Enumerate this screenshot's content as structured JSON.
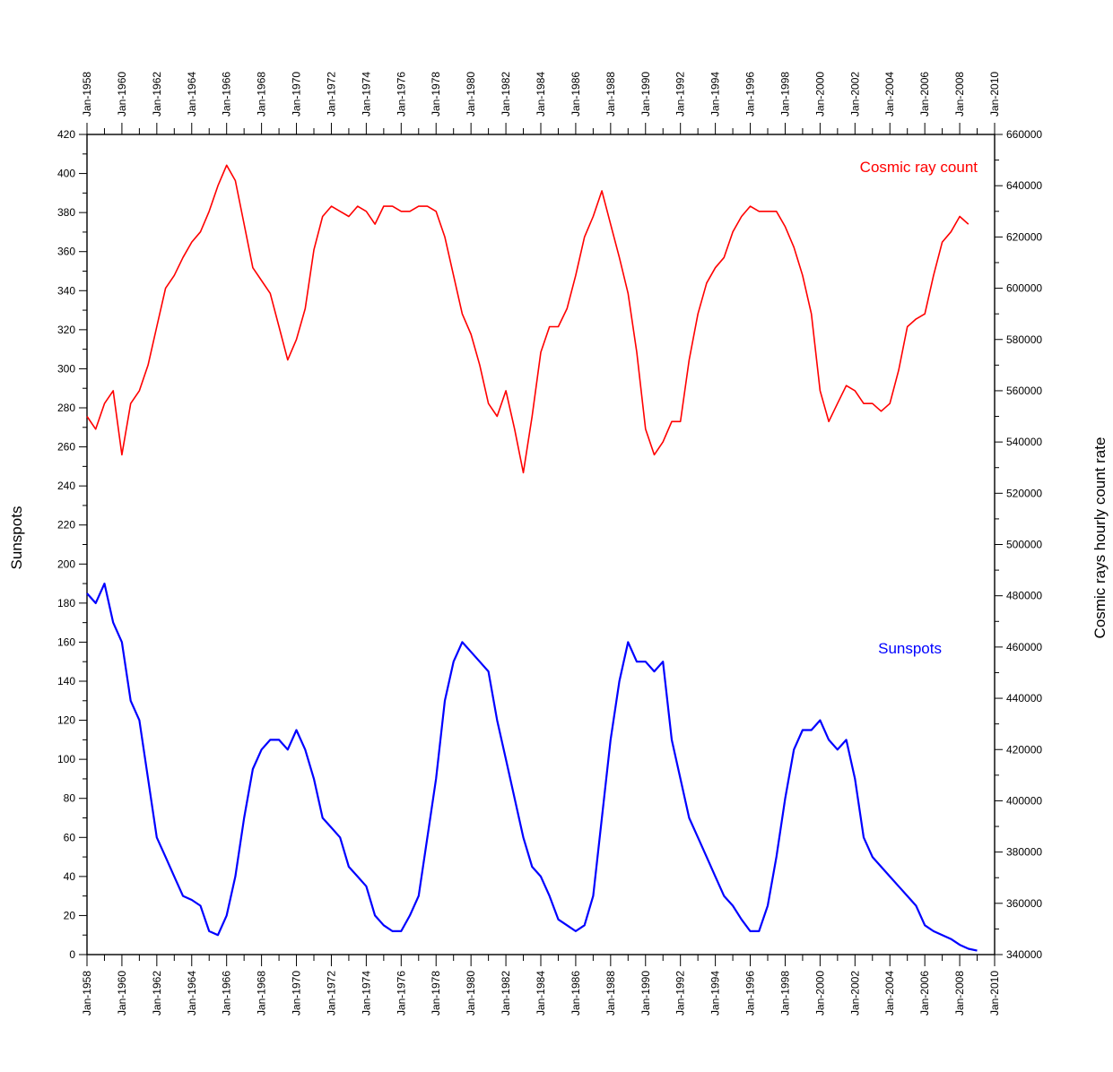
{
  "chart_data": {
    "type": "line",
    "x_tick_labels": [
      "Jan-1958",
      "Jan-1960",
      "Jan-1962",
      "Jan-1964",
      "Jan-1966",
      "Jan-1968",
      "Jan-1970",
      "Jan-1972",
      "Jan-1974",
      "Jan-1976",
      "Jan-1978",
      "Jan-1980",
      "Jan-1982",
      "Jan-1984",
      "Jan-1986",
      "Jan-1988",
      "Jan-1990",
      "Jan-1992",
      "Jan-1994",
      "Jan-1996",
      "Jan-1998",
      "Jan-2000",
      "Jan-2002",
      "Jan-2004",
      "Jan-2006",
      "Jan-2008",
      "Jan-2010"
    ],
    "xlim": [
      1958,
      2010
    ],
    "left_axis": {
      "label": "Sunspots",
      "ylim": [
        0,
        420
      ],
      "ticks": [
        0,
        20,
        40,
        60,
        80,
        100,
        120,
        140,
        160,
        180,
        200,
        220,
        240,
        260,
        280,
        300,
        320,
        340,
        360,
        380,
        400,
        420
      ]
    },
    "right_axis": {
      "label": "Cosmic rays hourly count rate",
      "ylim": [
        340000,
        660000
      ],
      "ticks": [
        340000,
        360000,
        380000,
        400000,
        420000,
        440000,
        460000,
        480000,
        500000,
        520000,
        540000,
        560000,
        580000,
        600000,
        620000,
        640000,
        660000
      ]
    },
    "series": [
      {
        "name": "Cosmic ray count",
        "color": "#ff0000",
        "axis": "right",
        "x": [
          1958.0,
          1958.5,
          1959.0,
          1959.5,
          1960.0,
          1960.5,
          1961.0,
          1961.5,
          1962.0,
          1962.5,
          1963.0,
          1963.5,
          1964.0,
          1964.5,
          1965.0,
          1965.5,
          1966.0,
          1966.5,
          1967.0,
          1967.5,
          1968.0,
          1968.5,
          1969.0,
          1969.5,
          1970.0,
          1970.5,
          1971.0,
          1971.5,
          1972.0,
          1972.5,
          1973.0,
          1973.5,
          1974.0,
          1974.5,
          1975.0,
          1975.5,
          1976.0,
          1976.5,
          1977.0,
          1977.5,
          1978.0,
          1978.5,
          1979.0,
          1979.5,
          1980.0,
          1980.5,
          1981.0,
          1981.5,
          1982.0,
          1982.5,
          1983.0,
          1983.5,
          1984.0,
          1984.5,
          1985.0,
          1985.5,
          1986.0,
          1986.5,
          1987.0,
          1987.5,
          1988.0,
          1988.5,
          1989.0,
          1989.5,
          1990.0,
          1990.5,
          1991.0,
          1991.5,
          1992.0,
          1992.5,
          1993.0,
          1993.5,
          1994.0,
          1994.5,
          1995.0,
          1995.5,
          1996.0,
          1996.5,
          1997.0,
          1997.5,
          1998.0,
          1998.5,
          1999.0,
          1999.5,
          2000.0,
          2000.5,
          2001.0,
          2001.5,
          2002.0,
          2002.5,
          2003.0,
          2003.5,
          2004.0,
          2004.5,
          2005.0,
          2005.5,
          2006.0,
          2006.5,
          2007.0,
          2007.5,
          2008.0,
          2008.5
        ],
        "values": [
          550000,
          545000,
          555000,
          560000,
          535000,
          555000,
          560000,
          570000,
          585000,
          600000,
          605000,
          612000,
          618000,
          622000,
          630000,
          640000,
          648000,
          642000,
          625000,
          608000,
          603000,
          598000,
          585000,
          572000,
          580000,
          592000,
          615000,
          628000,
          632000,
          630000,
          628000,
          632000,
          630000,
          625000,
          632000,
          632000,
          630000,
          630000,
          632000,
          632000,
          630000,
          620000,
          605000,
          590000,
          582000,
          570000,
          555000,
          550000,
          560000,
          545000,
          528000,
          550000,
          575000,
          585000,
          585000,
          592000,
          605000,
          620000,
          628000,
          638000,
          625000,
          612000,
          598000,
          575000,
          545000,
          535000,
          540000,
          548000,
          548000,
          572000,
          590000,
          602000,
          608000,
          612000,
          622000,
          628000,
          632000,
          630000,
          630000,
          630000,
          624000,
          616000,
          605000,
          590000,
          560000,
          548000,
          555000,
          562000,
          560000,
          555000,
          555000,
          552000,
          555000,
          568000,
          585000,
          588000,
          590000,
          605000,
          618000,
          622000,
          628000,
          625000
        ]
      },
      {
        "name": "Sunspots",
        "color": "#0000ff",
        "axis": "left",
        "x": [
          1958.0,
          1958.5,
          1959.0,
          1959.5,
          1960.0,
          1960.5,
          1961.0,
          1961.5,
          1962.0,
          1962.5,
          1963.0,
          1963.5,
          1964.0,
          1964.5,
          1965.0,
          1965.5,
          1966.0,
          1966.5,
          1967.0,
          1967.5,
          1968.0,
          1968.5,
          1969.0,
          1969.5,
          1970.0,
          1970.5,
          1971.0,
          1971.5,
          1972.0,
          1972.5,
          1973.0,
          1973.5,
          1974.0,
          1974.5,
          1975.0,
          1975.5,
          1976.0,
          1976.5,
          1977.0,
          1977.5,
          1978.0,
          1978.5,
          1979.0,
          1979.5,
          1980.0,
          1980.5,
          1981.0,
          1981.5,
          1982.0,
          1982.5,
          1983.0,
          1983.5,
          1984.0,
          1984.5,
          1985.0,
          1985.5,
          1986.0,
          1986.5,
          1987.0,
          1987.5,
          1988.0,
          1988.5,
          1989.0,
          1989.5,
          1990.0,
          1990.5,
          1991.0,
          1991.5,
          1992.0,
          1992.5,
          1993.0,
          1993.5,
          1994.0,
          1994.5,
          1995.0,
          1995.5,
          1996.0,
          1996.5,
          1997.0,
          1997.5,
          1998.0,
          1998.5,
          1999.0,
          1999.5,
          2000.0,
          2000.5,
          2001.0,
          2001.5,
          2002.0,
          2002.5,
          2003.0,
          2003.5,
          2004.0,
          2004.5,
          2005.0,
          2005.5,
          2006.0,
          2006.5,
          2007.0,
          2007.5,
          2008.0,
          2008.5,
          2009.0
        ],
        "values": [
          185,
          180,
          190,
          170,
          160,
          130,
          120,
          90,
          60,
          50,
          40,
          30,
          28,
          25,
          12,
          10,
          20,
          40,
          70,
          95,
          105,
          110,
          110,
          105,
          115,
          105,
          90,
          70,
          65,
          60,
          45,
          40,
          35,
          20,
          15,
          12,
          12,
          20,
          30,
          60,
          90,
          130,
          150,
          160,
          155,
          150,
          145,
          120,
          100,
          80,
          60,
          45,
          40,
          30,
          18,
          15,
          12,
          15,
          30,
          70,
          110,
          140,
          160,
          150,
          150,
          145,
          150,
          110,
          90,
          70,
          60,
          50,
          40,
          30,
          25,
          18,
          12,
          12,
          25,
          50,
          80,
          105,
          115,
          115,
          120,
          110,
          105,
          110,
          90,
          60,
          50,
          45,
          40,
          35,
          30,
          25,
          15,
          12,
          10,
          8,
          5,
          3,
          2
        ]
      }
    ]
  }
}
